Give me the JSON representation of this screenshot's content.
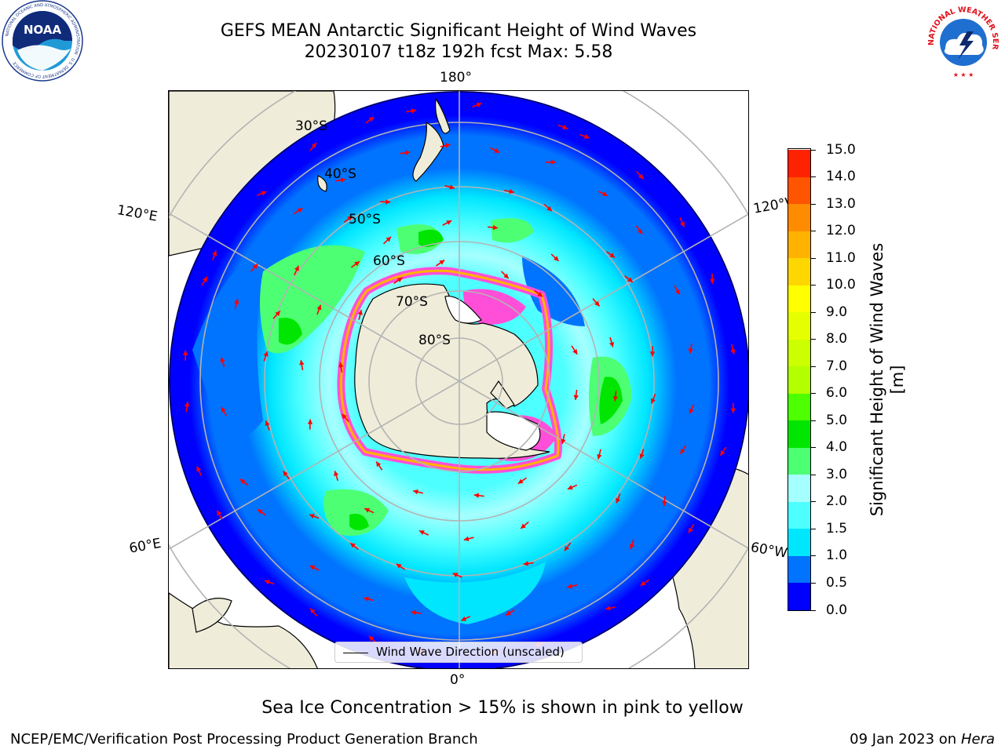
{
  "title": {
    "line1": "GEFS MEAN Antarctic Significant Height of Wind Waves",
    "line2": "20230107 t18z 192h fcst   Max: 5.58"
  },
  "map": {
    "projection": "south-polar-stereographic",
    "longitude_labels": {
      "top": "180°",
      "bottom": "0°",
      "upper_left": "120°E",
      "upper_right": "120°W",
      "lower_left": "60°E",
      "lower_right": "60°W"
    },
    "latitude_labels": [
      "30°S",
      "40°S",
      "50°S",
      "60°S",
      "70°S",
      "80°S"
    ],
    "colors": {
      "land": "#efedd9",
      "ice_shelf": "#ffffff",
      "sea_ice": "#ff4fd8",
      "graticule": "#b3b3b3",
      "arrows": "#ff0000"
    },
    "legend": "Wind Wave Direction (unscaled)"
  },
  "colorbar": {
    "label": "Significant Height of Wind Waves [m]",
    "units": "m",
    "ticks": [
      "0.0",
      "0.5",
      "1.0",
      "1.5",
      "2.0",
      "3.0",
      "4.0",
      "5.0",
      "6.0",
      "7.0",
      "8.0",
      "9.0",
      "10.0",
      "11.0",
      "12.0",
      "13.0",
      "14.0",
      "15.0"
    ],
    "colors": [
      "#0000ff",
      "#0073ff",
      "#00e6ff",
      "#4dffff",
      "#a6ffff",
      "#4dff73",
      "#00e600",
      "#4dff00",
      "#b3ff00",
      "#ccff00",
      "#e6ff00",
      "#ffff00",
      "#ffd700",
      "#ffb300",
      "#ff8c00",
      "#ff5500",
      "#ff2200"
    ]
  },
  "footnote": "Sea Ice Concentration > 15% is shown in pink to yellow",
  "credits": {
    "left": "NCEP/EMC/Verification Post Processing Product Generation Branch",
    "right_date": "09 Jan 2023 on ",
    "right_machine": "Hera"
  },
  "logos": {
    "noaa_text": "NOAA",
    "noaa_ring": "NATIONAL OCEANIC AND ATMOSPHERIC ADMINISTRATION · U.S. DEPARTMENT OF COMMERCE",
    "nws_ring": "NATIONAL WEATHER SERVICE"
  }
}
